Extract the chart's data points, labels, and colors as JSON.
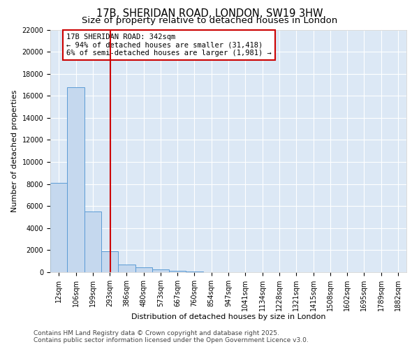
{
  "title_line1": "17B, SHERIDAN ROAD, LONDON, SW19 3HW",
  "title_line2": "Size of property relative to detached houses in London",
  "xlabel": "Distribution of detached houses by size in London",
  "ylabel": "Number of detached properties",
  "bar_edges": [
    12,
    106,
    199,
    293,
    386,
    480,
    573,
    667,
    760,
    854,
    947,
    1041,
    1134,
    1228,
    1321,
    1415,
    1508,
    1602,
    1695,
    1789,
    1882
  ],
  "bar_heights": [
    8100,
    16800,
    5500,
    1900,
    700,
    420,
    230,
    110,
    55,
    30,
    18,
    10,
    6,
    4,
    3,
    2,
    2,
    1,
    1,
    1,
    0
  ],
  "bar_color": "#c5d8ee",
  "bar_edge_color": "#5b9bd5",
  "red_line_x": 342,
  "annotation_line1": "17B SHERIDAN ROAD: 342sqm",
  "annotation_line2": "← 94% of detached houses are smaller (31,418)",
  "annotation_line3": "6% of semi-detached houses are larger (1,981) →",
  "annotation_box_color": "#ffffff",
  "annotation_box_edge": "#cc0000",
  "annotation_text_color": "#000000",
  "red_line_color": "#cc0000",
  "ylim": [
    0,
    22000
  ],
  "yticks": [
    0,
    2000,
    4000,
    6000,
    8000,
    10000,
    12000,
    14000,
    16000,
    18000,
    20000,
    22000
  ],
  "background_color": "#dce8f5",
  "footer_line1": "Contains HM Land Registry data © Crown copyright and database right 2025.",
  "footer_line2": "Contains public sector information licensed under the Open Government Licence v3.0.",
  "title_fontsize": 10.5,
  "subtitle_fontsize": 9.5,
  "axis_label_fontsize": 8,
  "tick_fontsize": 7,
  "annotation_fontsize": 7.5,
  "footer_fontsize": 6.5,
  "bin_width": 94
}
